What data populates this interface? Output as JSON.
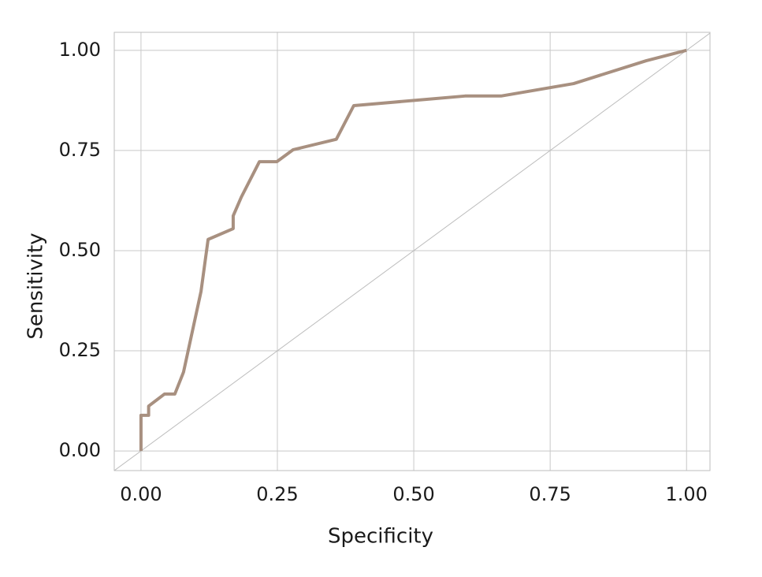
{
  "chart_data": {
    "type": "line",
    "x_label": "Specificity",
    "y_label": "Sensitivity",
    "x": [
      0,
      0,
      0.014,
      0.014,
      0.043,
      0.062,
      0.078,
      0.11,
      0.123,
      0.169,
      0.169,
      0.184,
      0.217,
      0.249,
      0.279,
      0.358,
      0.39,
      0.594,
      0.66,
      0.793,
      0.926,
      1
    ],
    "series": [
      {
        "color": "#a89080",
        "values": [
          0,
          0.089,
          0.089,
          0.112,
          0.142,
          0.142,
          0.197,
          0.398,
          0.528,
          0.555,
          0.587,
          0.634,
          0.722,
          0.722,
          0.752,
          0.778,
          0.862,
          0.886,
          0.886,
          0.917,
          0.974,
          1
        ]
      }
    ],
    "xlim": [
      -0.049,
      1.043
    ],
    "ylim": [
      -0.049,
      1.045
    ],
    "xticks": [
      {
        "value": 0,
        "label": "0.00"
      },
      {
        "value": 0.25,
        "label": "0.25"
      },
      {
        "value": 0.5,
        "label": "0.50"
      },
      {
        "value": 0.75,
        "label": "0.75"
      },
      {
        "value": 1,
        "label": "1.00"
      }
    ],
    "yticks": [
      {
        "value": 0,
        "label": "0.00"
      },
      {
        "value": 0.25,
        "label": "0.25"
      },
      {
        "value": 0.5,
        "label": "0.50"
      },
      {
        "value": 0.75,
        "label": "0.75"
      },
      {
        "value": 1,
        "label": "1.00"
      }
    ],
    "grid": true,
    "diagonal": true
  }
}
